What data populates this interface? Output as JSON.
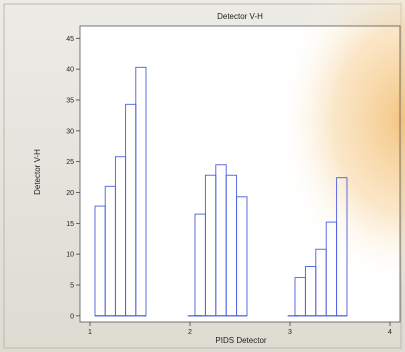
{
  "chart_data": {
    "type": "bar",
    "title": "Detector V-H",
    "xlabel": "PIDS Detector",
    "ylabel": "Detector V-H",
    "xlim": [
      0.9,
      4.1
    ],
    "ylim": [
      -1,
      47
    ],
    "x_ticks": [
      1,
      2,
      3,
      4
    ],
    "y_ticks": [
      0,
      5,
      10,
      15,
      20,
      25,
      30,
      35,
      40,
      45
    ],
    "grid": false,
    "groups": [
      {
        "x_start": 1.05,
        "x_end": 1.56,
        "values": [
          17.8,
          21,
          25.8,
          34.3,
          40.3
        ]
      },
      {
        "x_start": 1.98,
        "x_end": 2.12,
        "values": [
          0
        ]
      },
      {
        "x_start": 2.05,
        "x_end": 2.57,
        "values": [
          16.5,
          22.8,
          24.5,
          22.8,
          19.3
        ]
      },
      {
        "x_start": 2.98,
        "x_end": 3.08,
        "values": [
          0
        ]
      },
      {
        "x_start": 3.05,
        "x_end": 3.57,
        "values": [
          6.2,
          8,
          10.8,
          15.2,
          22.4
        ]
      }
    ],
    "colors": {
      "bar_stroke": "#4a5fe0",
      "plot_background": "#ffffff",
      "panel_background": "#ece9e0",
      "axis_color": "#444444",
      "glow_color": "#f3c27a"
    }
  }
}
